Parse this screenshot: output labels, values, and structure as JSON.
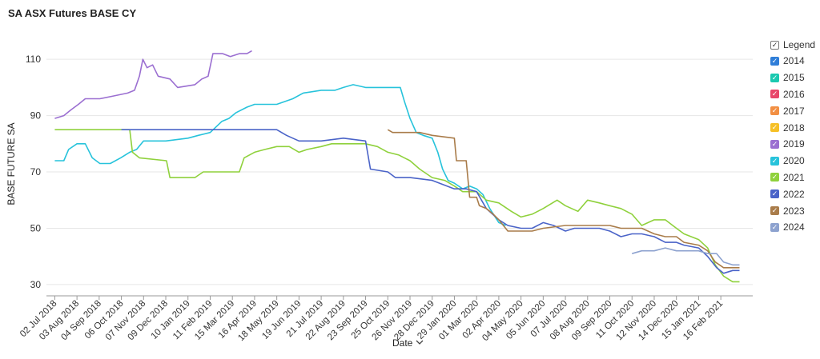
{
  "chart_data": {
    "type": "line",
    "title": "SA ASX Futures BASE CY",
    "xlabel": "Date",
    "ylabel": "BASE FUTURE SA",
    "ylim": [
      26,
      118
    ],
    "yticks": [
      30,
      50,
      70,
      90,
      110
    ],
    "xlim": [
      "2018-06-20",
      "2021-04-03"
    ],
    "grid": "horizontal",
    "legend_position": "right",
    "legend_title": "Legend",
    "x_tick_labels": [
      {
        "date": "2018-07-02",
        "label": "02 Jul 2018"
      },
      {
        "date": "2018-08-03",
        "label": "03 Aug 2018"
      },
      {
        "date": "2018-09-04",
        "label": "04 Sep 2018"
      },
      {
        "date": "2018-10-06",
        "label": "06 Oct 2018"
      },
      {
        "date": "2018-11-07",
        "label": "07 Nov 2018"
      },
      {
        "date": "2018-12-09",
        "label": "09 Dec 2018"
      },
      {
        "date": "2019-01-10",
        "label": "10 Jan 2019"
      },
      {
        "date": "2019-02-11",
        "label": "11 Feb 2019"
      },
      {
        "date": "2019-03-15",
        "label": "15 Mar 2019"
      },
      {
        "date": "2019-04-16",
        "label": "16 Apr 2019"
      },
      {
        "date": "2019-05-18",
        "label": "18 May 2019"
      },
      {
        "date": "2019-06-19",
        "label": "19 Jun 2019"
      },
      {
        "date": "2019-07-21",
        "label": "21 Jul 2019"
      },
      {
        "date": "2019-08-22",
        "label": "22 Aug 2019"
      },
      {
        "date": "2019-09-23",
        "label": "23 Sep 2019"
      },
      {
        "date": "2019-10-25",
        "label": "25 Oct 2019"
      },
      {
        "date": "2019-11-26",
        "label": "26 Nov 2019"
      },
      {
        "date": "2019-12-28",
        "label": "28 Dec 2019"
      },
      {
        "date": "2020-01-29",
        "label": "29 Jan 2020"
      },
      {
        "date": "2020-03-01",
        "label": "01 Mar 2020"
      },
      {
        "date": "2020-04-02",
        "label": "02 Apr 2020"
      },
      {
        "date": "2020-05-04",
        "label": "04 May 2020"
      },
      {
        "date": "2020-06-05",
        "label": "05 Jun 2020"
      },
      {
        "date": "2020-07-07",
        "label": "07 Jul 2020"
      },
      {
        "date": "2020-08-08",
        "label": "08 Aug 2020"
      },
      {
        "date": "2020-09-09",
        "label": "09 Sep 2020"
      },
      {
        "date": "2020-10-11",
        "label": "11 Oct 2020"
      },
      {
        "date": "2020-11-12",
        "label": "12 Nov 2020"
      },
      {
        "date": "2020-12-14",
        "label": "14 Dec 2020"
      },
      {
        "date": "2021-01-15",
        "label": "15 Jan 2021"
      },
      {
        "date": "2021-02-16",
        "label": "16 Feb 2021"
      }
    ],
    "series": [
      {
        "name": "2014",
        "color": "#2f7ed8",
        "values": []
      },
      {
        "name": "2015",
        "color": "#1bc9b0",
        "values": []
      },
      {
        "name": "2016",
        "color": "#e8476a",
        "values": []
      },
      {
        "name": "2017",
        "color": "#f28f43",
        "values": []
      },
      {
        "name": "2018",
        "color": "#f6c026",
        "values": []
      },
      {
        "name": "2019",
        "color": "#9b6fd1",
        "values": [
          [
            "2018-07-02",
            89
          ],
          [
            "2018-07-15",
            90
          ],
          [
            "2018-07-25",
            92
          ],
          [
            "2018-08-05",
            94
          ],
          [
            "2018-08-15",
            96
          ],
          [
            "2018-09-05",
            96
          ],
          [
            "2018-09-25",
            97
          ],
          [
            "2018-10-15",
            98
          ],
          [
            "2018-10-25",
            99
          ],
          [
            "2018-11-01",
            104
          ],
          [
            "2018-11-06",
            110
          ],
          [
            "2018-11-12",
            107
          ],
          [
            "2018-11-20",
            108
          ],
          [
            "2018-11-28",
            104
          ],
          [
            "2018-12-15",
            103
          ],
          [
            "2018-12-26",
            100
          ],
          [
            "2019-01-20",
            101
          ],
          [
            "2019-01-30",
            103
          ],
          [
            "2019-02-08",
            104
          ],
          [
            "2019-02-15",
            112
          ],
          [
            "2019-03-01",
            112
          ],
          [
            "2019-03-12",
            111
          ],
          [
            "2019-03-25",
            112
          ],
          [
            "2019-04-05",
            112
          ],
          [
            "2019-04-12",
            113
          ]
        ]
      },
      {
        "name": "2020",
        "color": "#27c3db",
        "values": [
          [
            "2018-07-02",
            74
          ],
          [
            "2018-07-15",
            74
          ],
          [
            "2018-07-22",
            78
          ],
          [
            "2018-08-03",
            80
          ],
          [
            "2018-08-15",
            80
          ],
          [
            "2018-08-25",
            75
          ],
          [
            "2018-09-05",
            73
          ],
          [
            "2018-09-20",
            73
          ],
          [
            "2018-10-05",
            75
          ],
          [
            "2018-10-18",
            77
          ],
          [
            "2018-10-28",
            78
          ],
          [
            "2018-11-07",
            81
          ],
          [
            "2018-11-25",
            81
          ],
          [
            "2018-12-09",
            81
          ],
          [
            "2019-01-10",
            82
          ],
          [
            "2019-01-25",
            83
          ],
          [
            "2019-02-11",
            84
          ],
          [
            "2019-02-28",
            88
          ],
          [
            "2019-03-10",
            89
          ],
          [
            "2019-03-20",
            91
          ],
          [
            "2019-04-05",
            93
          ],
          [
            "2019-04-16",
            94
          ],
          [
            "2019-05-18",
            94
          ],
          [
            "2019-06-10",
            96
          ],
          [
            "2019-06-25",
            98
          ],
          [
            "2019-07-21",
            99
          ],
          [
            "2019-08-10",
            99
          ],
          [
            "2019-08-22",
            100
          ],
          [
            "2019-09-05",
            101
          ],
          [
            "2019-09-23",
            100
          ],
          [
            "2019-10-25",
            100
          ],
          [
            "2019-11-12",
            100
          ],
          [
            "2019-11-18",
            95
          ],
          [
            "2019-11-26",
            89
          ],
          [
            "2019-12-05",
            84
          ],
          [
            "2019-12-15",
            83
          ],
          [
            "2019-12-28",
            82
          ],
          [
            "2020-01-05",
            77
          ],
          [
            "2020-01-12",
            71
          ],
          [
            "2020-01-20",
            67
          ],
          [
            "2020-01-29",
            66
          ],
          [
            "2020-02-10",
            64
          ],
          [
            "2020-02-20",
            65
          ],
          [
            "2020-03-01",
            64
          ],
          [
            "2020-03-10",
            62
          ],
          [
            "2020-03-20",
            57
          ],
          [
            "2020-04-02",
            52
          ],
          [
            "2020-04-12",
            51
          ]
        ]
      },
      {
        "name": "2021",
        "color": "#8fd13c",
        "values": [
          [
            "2018-07-02",
            85
          ],
          [
            "2018-10-06",
            85
          ],
          [
            "2018-10-18",
            85
          ],
          [
            "2018-10-22",
            77
          ],
          [
            "2018-11-01",
            75
          ],
          [
            "2018-12-10",
            74
          ],
          [
            "2018-12-15",
            68
          ],
          [
            "2019-01-20",
            68
          ],
          [
            "2019-02-01",
            70
          ],
          [
            "2019-03-10",
            70
          ],
          [
            "2019-03-25",
            70
          ],
          [
            "2019-04-01",
            75
          ],
          [
            "2019-04-16",
            77
          ],
          [
            "2019-05-01",
            78
          ],
          [
            "2019-05-18",
            79
          ],
          [
            "2019-06-05",
            79
          ],
          [
            "2019-06-19",
            77
          ],
          [
            "2019-07-01",
            78
          ],
          [
            "2019-07-21",
            79
          ],
          [
            "2019-08-05",
            80
          ],
          [
            "2019-08-22",
            80
          ],
          [
            "2019-09-10",
            80
          ],
          [
            "2019-09-23",
            80
          ],
          [
            "2019-10-10",
            79
          ],
          [
            "2019-10-25",
            77
          ],
          [
            "2019-11-10",
            76
          ],
          [
            "2019-11-26",
            74
          ],
          [
            "2019-12-10",
            71
          ],
          [
            "2019-12-28",
            68
          ],
          [
            "2020-01-15",
            67
          ],
          [
            "2020-01-29",
            65
          ],
          [
            "2020-02-10",
            63
          ],
          [
            "2020-03-01",
            63
          ],
          [
            "2020-03-15",
            60
          ],
          [
            "2020-04-02",
            59
          ],
          [
            "2020-04-20",
            56
          ],
          [
            "2020-05-04",
            54
          ],
          [
            "2020-05-20",
            55
          ],
          [
            "2020-06-05",
            57
          ],
          [
            "2020-06-25",
            60
          ],
          [
            "2020-07-07",
            58
          ],
          [
            "2020-07-25",
            56
          ],
          [
            "2020-08-08",
            60
          ],
          [
            "2020-08-25",
            59
          ],
          [
            "2020-09-09",
            58
          ],
          [
            "2020-09-25",
            57
          ],
          [
            "2020-10-11",
            55
          ],
          [
            "2020-10-25",
            51
          ],
          [
            "2020-11-12",
            53
          ],
          [
            "2020-11-28",
            53
          ],
          [
            "2020-12-14",
            50
          ],
          [
            "2020-12-25",
            48
          ],
          [
            "2021-01-15",
            46
          ],
          [
            "2021-01-28",
            43
          ],
          [
            "2021-02-08",
            37
          ],
          [
            "2021-02-20",
            33
          ],
          [
            "2021-03-05",
            31
          ],
          [
            "2021-03-15",
            31
          ]
        ]
      },
      {
        "name": "2022",
        "color": "#4a63c8",
        "values": [
          [
            "2018-10-06",
            85
          ],
          [
            "2019-05-18",
            85
          ],
          [
            "2019-06-01",
            83
          ],
          [
            "2019-06-19",
            81
          ],
          [
            "2019-07-21",
            81
          ],
          [
            "2019-08-22",
            82
          ],
          [
            "2019-09-23",
            81
          ],
          [
            "2019-09-30",
            71
          ],
          [
            "2019-10-25",
            70
          ],
          [
            "2019-11-05",
            68
          ],
          [
            "2019-11-26",
            68
          ],
          [
            "2019-12-28",
            67
          ],
          [
            "2020-01-29",
            64
          ],
          [
            "2020-02-15",
            64
          ],
          [
            "2020-03-01",
            63
          ],
          [
            "2020-03-15",
            57
          ],
          [
            "2020-04-02",
            53
          ],
          [
            "2020-04-15",
            51
          ],
          [
            "2020-05-04",
            50
          ],
          [
            "2020-05-20",
            50
          ],
          [
            "2020-06-05",
            52
          ],
          [
            "2020-06-20",
            51
          ],
          [
            "2020-07-07",
            49
          ],
          [
            "2020-07-20",
            50
          ],
          [
            "2020-08-08",
            50
          ],
          [
            "2020-08-25",
            50
          ],
          [
            "2020-09-09",
            49
          ],
          [
            "2020-09-25",
            47
          ],
          [
            "2020-10-11",
            48
          ],
          [
            "2020-10-25",
            48
          ],
          [
            "2020-11-12",
            47
          ],
          [
            "2020-11-28",
            45
          ],
          [
            "2020-12-14",
            45
          ],
          [
            "2020-12-25",
            44
          ],
          [
            "2021-01-15",
            43
          ],
          [
            "2021-01-28",
            40
          ],
          [
            "2021-02-10",
            36
          ],
          [
            "2021-02-20",
            34
          ],
          [
            "2021-03-05",
            35
          ],
          [
            "2021-03-15",
            35
          ]
        ]
      },
      {
        "name": "2023",
        "color": "#a97c4a",
        "values": [
          [
            "2019-10-25",
            85
          ],
          [
            "2019-11-01",
            84
          ],
          [
            "2019-11-26",
            84
          ],
          [
            "2019-12-10",
            84
          ],
          [
            "2019-12-28",
            83
          ],
          [
            "2020-01-29",
            82
          ],
          [
            "2020-02-01",
            74
          ],
          [
            "2020-02-15",
            74
          ],
          [
            "2020-02-20",
            61
          ],
          [
            "2020-03-01",
            61
          ],
          [
            "2020-03-05",
            58
          ],
          [
            "2020-03-15",
            57
          ],
          [
            "2020-03-25",
            55
          ],
          [
            "2020-04-02",
            53
          ],
          [
            "2020-04-15",
            49
          ],
          [
            "2020-05-04",
            49
          ],
          [
            "2020-05-20",
            49
          ],
          [
            "2020-06-05",
            50
          ],
          [
            "2020-07-07",
            51
          ],
          [
            "2020-08-08",
            51
          ],
          [
            "2020-09-09",
            51
          ],
          [
            "2020-09-25",
            50
          ],
          [
            "2020-10-11",
            50
          ],
          [
            "2020-10-25",
            50
          ],
          [
            "2020-11-12",
            48
          ],
          [
            "2020-11-28",
            47
          ],
          [
            "2020-12-14",
            47
          ],
          [
            "2020-12-25",
            45
          ],
          [
            "2021-01-15",
            44
          ],
          [
            "2021-01-28",
            42
          ],
          [
            "2021-02-08",
            38
          ],
          [
            "2021-02-20",
            36
          ],
          [
            "2021-03-05",
            36
          ],
          [
            "2021-03-15",
            36
          ]
        ]
      },
      {
        "name": "2024",
        "color": "#8da2cf",
        "values": [
          [
            "2020-10-11",
            41
          ],
          [
            "2020-10-25",
            42
          ],
          [
            "2020-11-12",
            42
          ],
          [
            "2020-11-28",
            43
          ],
          [
            "2020-12-14",
            42
          ],
          [
            "2020-12-25",
            42
          ],
          [
            "2021-01-15",
            42
          ],
          [
            "2021-01-28",
            41
          ],
          [
            "2021-02-10",
            41
          ],
          [
            "2021-02-20",
            38
          ],
          [
            "2021-03-05",
            37
          ],
          [
            "2021-03-15",
            37
          ]
        ]
      }
    ]
  }
}
